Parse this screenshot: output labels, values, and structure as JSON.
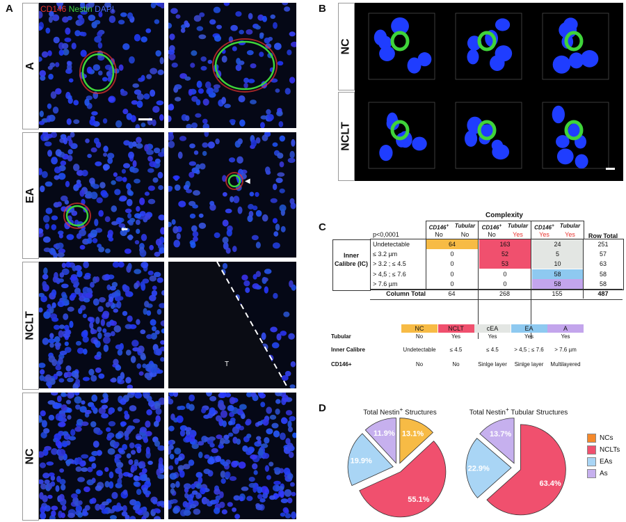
{
  "panel_letters": {
    "a": "A",
    "b": "B",
    "c": "C",
    "d": "D"
  },
  "panel_a": {
    "stain_labels": [
      {
        "text": "CD146",
        "color": "#e8342f"
      },
      {
        "text": "Nestin",
        "color": "#3fd43a"
      },
      {
        "text": "DAPI",
        "color": "#4a6cff"
      }
    ],
    "rows": [
      "A",
      "EA",
      "NCLT",
      "NC"
    ],
    "tissue_marker": "T"
  },
  "panel_b": {
    "rows": [
      "NC",
      "NCLT"
    ]
  },
  "panel_c": {
    "complexity_title": "Complexity",
    "pvalue": "p<0,0001",
    "col_groups": [
      {
        "cd146": "CD146",
        "cd146_sup": "+",
        "tubular": "Tubular",
        "cd146_val": "No",
        "tubular_val": "No"
      },
      {
        "cd146": "CD146",
        "cd146_sup": "+",
        "tubular": "Tubular",
        "cd146_val": "No",
        "tubular_val": "Yes"
      },
      {
        "cd146": "CD146",
        "cd146_sup": "+",
        "tubular": "Tubular",
        "cd146_val": "Yes",
        "tubular_val": "Yes"
      }
    ],
    "row_total_label": "Row Total",
    "ic_label_line1": "Inner",
    "ic_label_line2": "Calibre (IC)",
    "rows": [
      {
        "label": "Undetectable",
        "values": [
          "64",
          "163",
          "24"
        ],
        "total": "251"
      },
      {
        "label": "≤ 3.2 µm",
        "values": [
          "0",
          "52",
          "5"
        ],
        "total": "57"
      },
      {
        "label": "> 3.2 ; ≤ 4.5",
        "values": [
          "0",
          "53",
          "10"
        ],
        "total": "63"
      },
      {
        "label": "> 4,5 ; ≤ 7.6",
        "values": [
          "0",
          "0",
          "58"
        ],
        "total": "58"
      },
      {
        "label": "> 7.6 µm",
        "values": [
          "0",
          "0",
          "58"
        ],
        "total": "58"
      }
    ],
    "column_total_label": "Column Total",
    "column_totals": [
      "64",
      "268",
      "155"
    ],
    "grand_total": "487",
    "colors": {
      "nc": "#f7bb45",
      "nclt": "#f0506e",
      "cea": "#e3e6e3",
      "ea": "#8ec9f0",
      "a": "#c3a5ec"
    },
    "legend": {
      "headers": [
        "NC",
        "NCLT",
        "cEA",
        "EA",
        "A"
      ],
      "row_labels": [
        "Tubular",
        "Inner Calibre",
        "CD146+"
      ],
      "tubular": [
        "No",
        "Yes",
        "Yes",
        "Yes",
        "Yes"
      ],
      "calibre": [
        "Undetectable",
        "≤ 4.5",
        "≤ 4.5",
        "> 4,5 ; ≤ 7.6",
        "> 7.6 µm"
      ],
      "cd146": [
        "No",
        "No",
        "Sinlge layer",
        "Sinlge layer",
        "Multilayered"
      ]
    }
  },
  "panel_d": {
    "chart_data": [
      {
        "type": "pie",
        "title": "Total Nestin",
        "title_sup": "+",
        "title_rest": " Structures",
        "labels": [
          "NCs",
          "NCLTs",
          "EAs",
          "As"
        ],
        "values": [
          13.1,
          55.1,
          19.9,
          11.9
        ],
        "value_labels": [
          "13.1%",
          "55.1%",
          "19.9%",
          "11.9%"
        ],
        "colors": [
          "#f7bb45",
          "#f0506e",
          "#a9d5f5",
          "#c6b0ee"
        ]
      },
      {
        "type": "pie",
        "title": "Total Nestin",
        "title_sup": "+",
        "title_rest": " Tubular Structures",
        "labels": [
          "NCLTs",
          "EAs",
          "As"
        ],
        "values": [
          63.4,
          22.9,
          13.7
        ],
        "value_labels": [
          "63.4%",
          "22.9%",
          "13.7%"
        ],
        "colors": [
          "#f0506e",
          "#a9d5f5",
          "#c6b0ee"
        ]
      }
    ],
    "legend": [
      {
        "label": "NCs",
        "color": "#f5892b"
      },
      {
        "label": "NCLTs",
        "color": "#f0506e"
      },
      {
        "label": "EAs",
        "color": "#a9d5f5"
      },
      {
        "label": "As",
        "color": "#c6b0ee"
      }
    ]
  }
}
